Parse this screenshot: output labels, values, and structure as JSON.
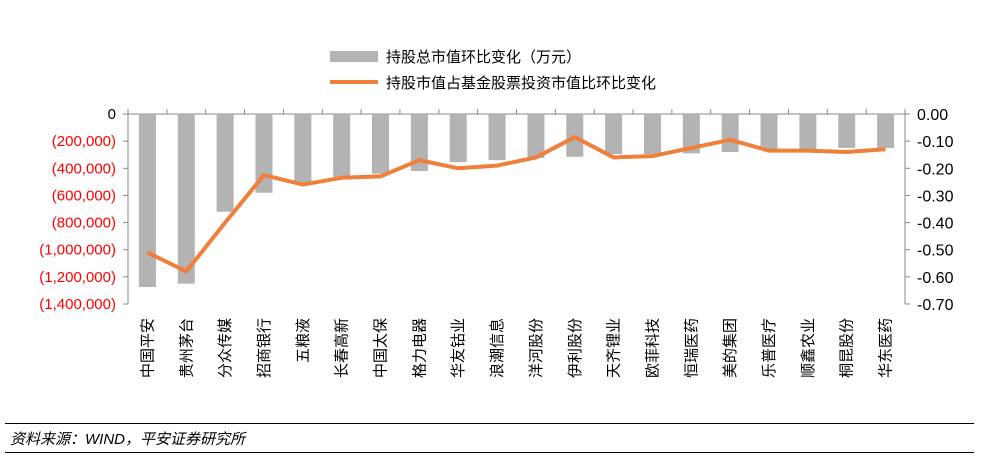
{
  "chart_data": {
    "type": "bar+line",
    "categories": [
      "中国平安",
      "贵州茅台",
      "分众传媒",
      "招商银行",
      "五粮液",
      "长春高新",
      "中国太保",
      "格力电器",
      "华友钴业",
      "浪潮信息",
      "洋河股份",
      "伊利股份",
      "天齐锂业",
      "欧菲科技",
      "恒瑞医药",
      "美的集团",
      "乐普医疗",
      "顺鑫农业",
      "桐昆股份",
      "华东医药"
    ],
    "series": [
      {
        "name": "持股总市值环比变化（万元）",
        "type": "bar",
        "axis": "left",
        "color": "#b3b3b3",
        "values": [
          -1275000,
          -1250000,
          -720000,
          -580000,
          -510000,
          -465000,
          -440000,
          -420000,
          -355000,
          -340000,
          -325000,
          -315000,
          -295000,
          -295000,
          -290000,
          -280000,
          -265000,
          -265000,
          -250000,
          -250000
        ]
      },
      {
        "name": "持股市值占基金股票投资市值比环比变化",
        "type": "line",
        "axis": "right",
        "color": "#f07f3c",
        "values": [
          -0.51,
          -0.58,
          -0.4,
          -0.225,
          -0.26,
          -0.235,
          -0.23,
          -0.17,
          -0.2,
          -0.19,
          -0.16,
          -0.085,
          -0.16,
          -0.155,
          -0.125,
          -0.095,
          -0.135,
          -0.135,
          -0.14,
          -0.13
        ]
      }
    ],
    "left_axis": {
      "ylim": [
        -1400000,
        0
      ],
      "ticks": [
        "0",
        "(200,000)",
        "(400,000)",
        "(600,000)",
        "(800,000)",
        "(1,000,000)",
        "(1,200,000)",
        "(1,400,000)"
      ],
      "negative_color": "#ff0000"
    },
    "right_axis": {
      "ylim": [
        -0.7,
        0
      ],
      "ticks": [
        "0.00",
        "-0.10",
        "-0.20",
        "-0.30",
        "-0.40",
        "-0.50",
        "-0.60",
        "-0.70"
      ]
    },
    "legend_position": "top-center",
    "grid": false
  },
  "source": "资料来源：WIND，平安证券研究所"
}
